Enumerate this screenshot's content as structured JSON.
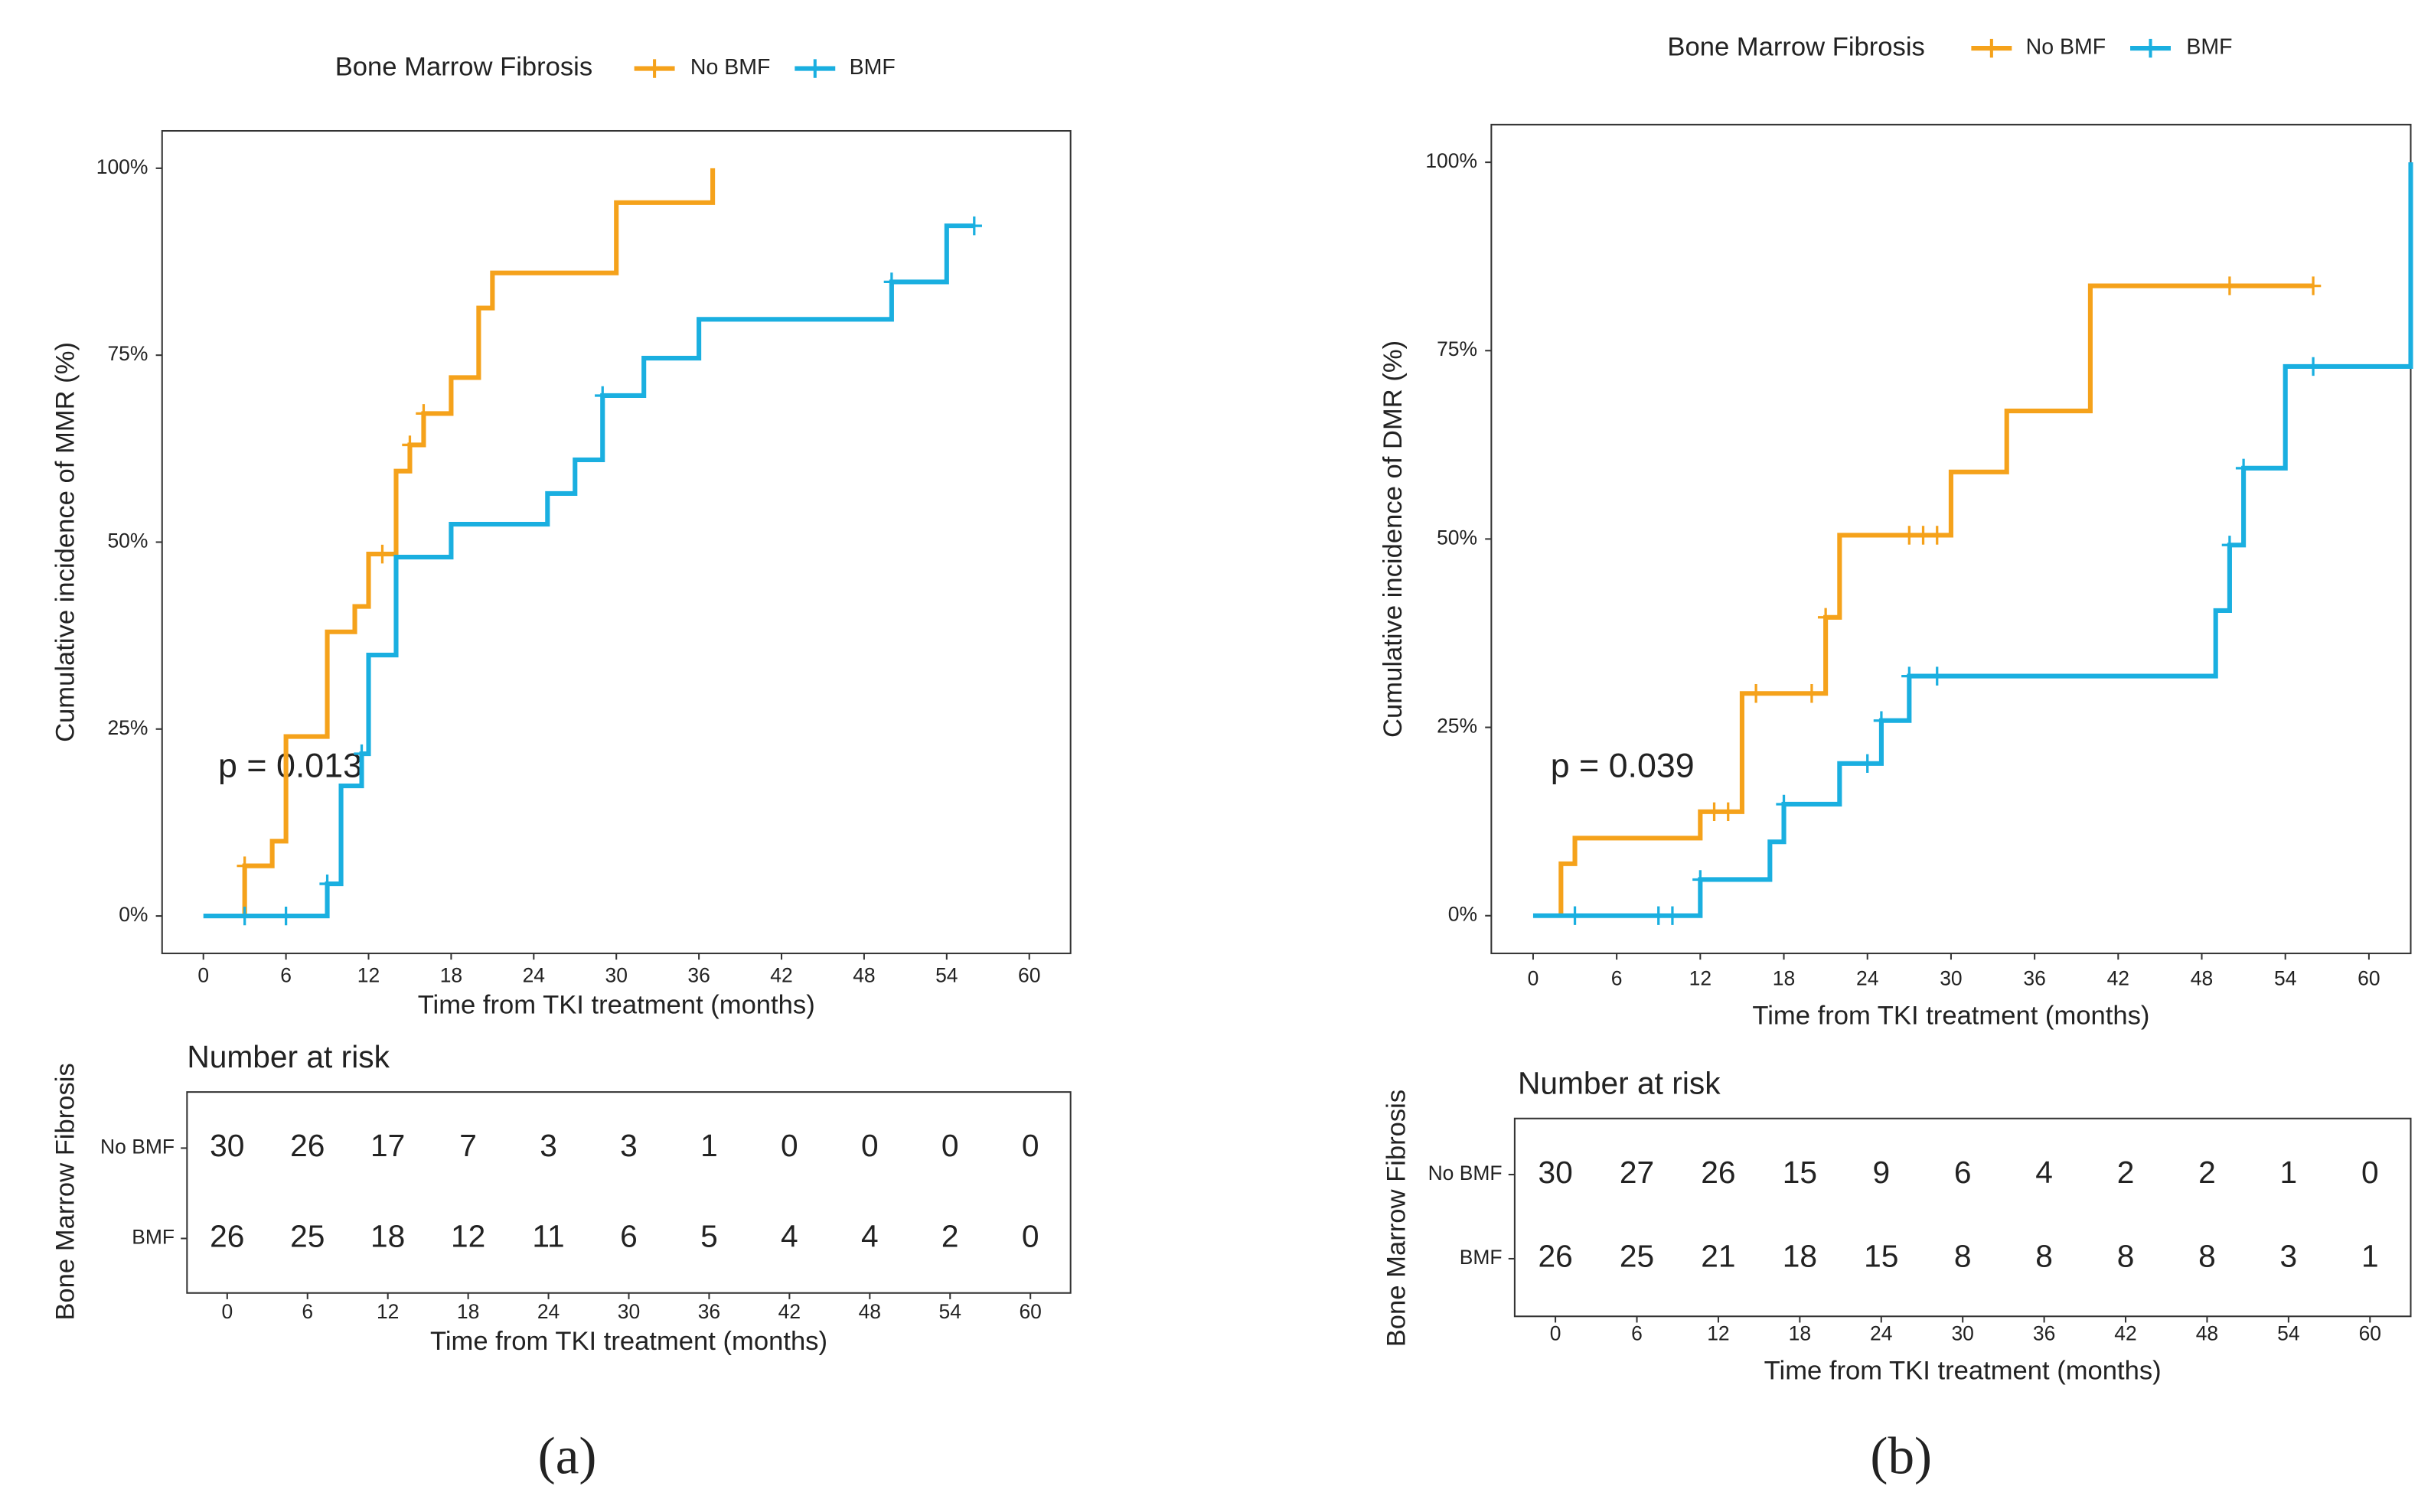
{
  "chart_data": [
    {
      "type": "step",
      "legend_title": "Bone Marrow Fibrosis",
      "xlim": [
        -3,
        63
      ],
      "xticks": [
        0,
        6,
        12,
        18,
        24,
        30,
        36,
        42,
        48,
        54,
        60
      ],
      "ylim": [
        -5,
        105
      ],
      "yticks": [
        {
          "value": 0,
          "label": "0%"
        },
        {
          "value": 25,
          "label": "25%"
        },
        {
          "value": 50,
          "label": "50%"
        },
        {
          "value": 75,
          "label": "75%"
        },
        {
          "value": 100,
          "label": "100%"
        }
      ],
      "xlabel": "Time from TKI treatment (months)",
      "ylabel": "Cumulative incidence of MMR (%)",
      "annotation": "p = 0.013",
      "series": [
        {
          "name": "No BMF",
          "color": "#F5A21B",
          "x": [
            3,
            3,
            5,
            6,
            9,
            11,
            12,
            14,
            15,
            16,
            18,
            20,
            21,
            30,
            37
          ],
          "values": [
            0,
            6.7,
            10,
            24,
            38,
            41.4,
            48.4,
            59.5,
            63,
            67.2,
            72,
            81.3,
            86,
            95.4,
            100
          ],
          "censor_x": [
            3,
            13,
            15,
            16
          ],
          "censor_values": [
            6.7,
            48.4,
            63,
            67.2
          ]
        },
        {
          "name": "BMF",
          "color": "#1AAFE0",
          "x": [
            0,
            9,
            10,
            11.5,
            12,
            14,
            18,
            25,
            27,
            29,
            32,
            36,
            50,
            54,
            56
          ],
          "values": [
            0,
            4.3,
            17.4,
            21.7,
            34.9,
            48,
            52.4,
            56.5,
            61,
            69.6,
            74.6,
            79.8,
            84.8,
            92.3,
            92.3
          ],
          "censor_x": [
            3,
            6,
            9,
            11.5,
            29,
            50,
            56
          ],
          "censor_values": [
            0,
            0,
            4.3,
            21.7,
            69.6,
            84.8,
            92.3
          ]
        }
      ],
      "risk_table": {
        "title": "Number at risk",
        "ylabel": "Bone Marrow Fibrosis",
        "rows": [
          {
            "name": "No BMF",
            "color": "#F5A21B",
            "values": [
              30,
              26,
              17,
              7,
              3,
              3,
              1,
              0,
              0,
              0,
              0
            ]
          },
          {
            "name": "BMF",
            "color": "#1AAFE0",
            "values": [
              26,
              25,
              18,
              12,
              11,
              6,
              5,
              4,
              4,
              2,
              0
            ]
          }
        ],
        "xticks": [
          0,
          6,
          12,
          18,
          24,
          30,
          36,
          42,
          48,
          54,
          60
        ],
        "xlabel": "Time from TKI treatment (months)"
      },
      "panel_label": "(a)"
    },
    {
      "type": "step",
      "legend_title": "Bone Marrow Fibrosis",
      "xlim": [
        -3,
        63
      ],
      "xticks": [
        0,
        6,
        12,
        18,
        24,
        30,
        36,
        42,
        48,
        54,
        60
      ],
      "ylim": [
        -5,
        105
      ],
      "yticks": [
        {
          "value": 0,
          "label": "0%"
        },
        {
          "value": 25,
          "label": "25%"
        },
        {
          "value": 50,
          "label": "50%"
        },
        {
          "value": 75,
          "label": "75%"
        },
        {
          "value": 100,
          "label": "100%"
        }
      ],
      "xlabel": "Time from TKI treatment (months)",
      "ylabel": "Cumulative incidence of DMR (%)",
      "annotation": "p = 0.039",
      "series": [
        {
          "name": "No BMF",
          "color": "#F5A21B",
          "x": [
            2,
            2,
            3,
            12,
            15,
            21,
            22,
            30,
            34,
            40,
            56
          ],
          "values": [
            0,
            6.9,
            10.3,
            13.8,
            29.5,
            39.6,
            50.5,
            58.9,
            67,
            83.6,
            83.6
          ],
          "censor_x": [
            13,
            14,
            16,
            20,
            21,
            27,
            28,
            29,
            50,
            56
          ],
          "censor_values": [
            13.8,
            13.8,
            29.5,
            29.5,
            39.6,
            50.5,
            50.5,
            50.5,
            83.6,
            83.6
          ]
        },
        {
          "name": "BMF",
          "color": "#1AAFE0",
          "x": [
            0,
            12,
            17,
            18,
            22,
            25,
            27,
            49,
            50,
            51,
            54,
            63,
            63
          ],
          "values": [
            0,
            4.8,
            9.8,
            14.8,
            20.2,
            25.9,
            31.8,
            40.5,
            49.2,
            59.4,
            72.9,
            72.9,
            100
          ],
          "censor_x": [
            3,
            9,
            10,
            12,
            18,
            24,
            25,
            27,
            29,
            50,
            51,
            56
          ],
          "censor_values": [
            0,
            0,
            0,
            4.8,
            14.8,
            20.2,
            25.9,
            31.8,
            31.8,
            49.2,
            59.4,
            72.9
          ]
        }
      ],
      "risk_table": {
        "title": "Number at risk",
        "ylabel": "Bone Marrow Fibrosis",
        "rows": [
          {
            "name": "No BMF",
            "color": "#F5A21B",
            "values": [
              30,
              27,
              26,
              15,
              9,
              6,
              4,
              2,
              2,
              1,
              0
            ]
          },
          {
            "name": "BMF",
            "color": "#1AAFE0",
            "values": [
              26,
              25,
              21,
              18,
              15,
              8,
              8,
              8,
              8,
              3,
              1
            ]
          }
        ],
        "xticks": [
          0,
          6,
          12,
          18,
          24,
          30,
          36,
          42,
          48,
          54,
          60
        ],
        "xlabel": "Time from TKI treatment (months)"
      },
      "panel_label": "(b)"
    }
  ]
}
